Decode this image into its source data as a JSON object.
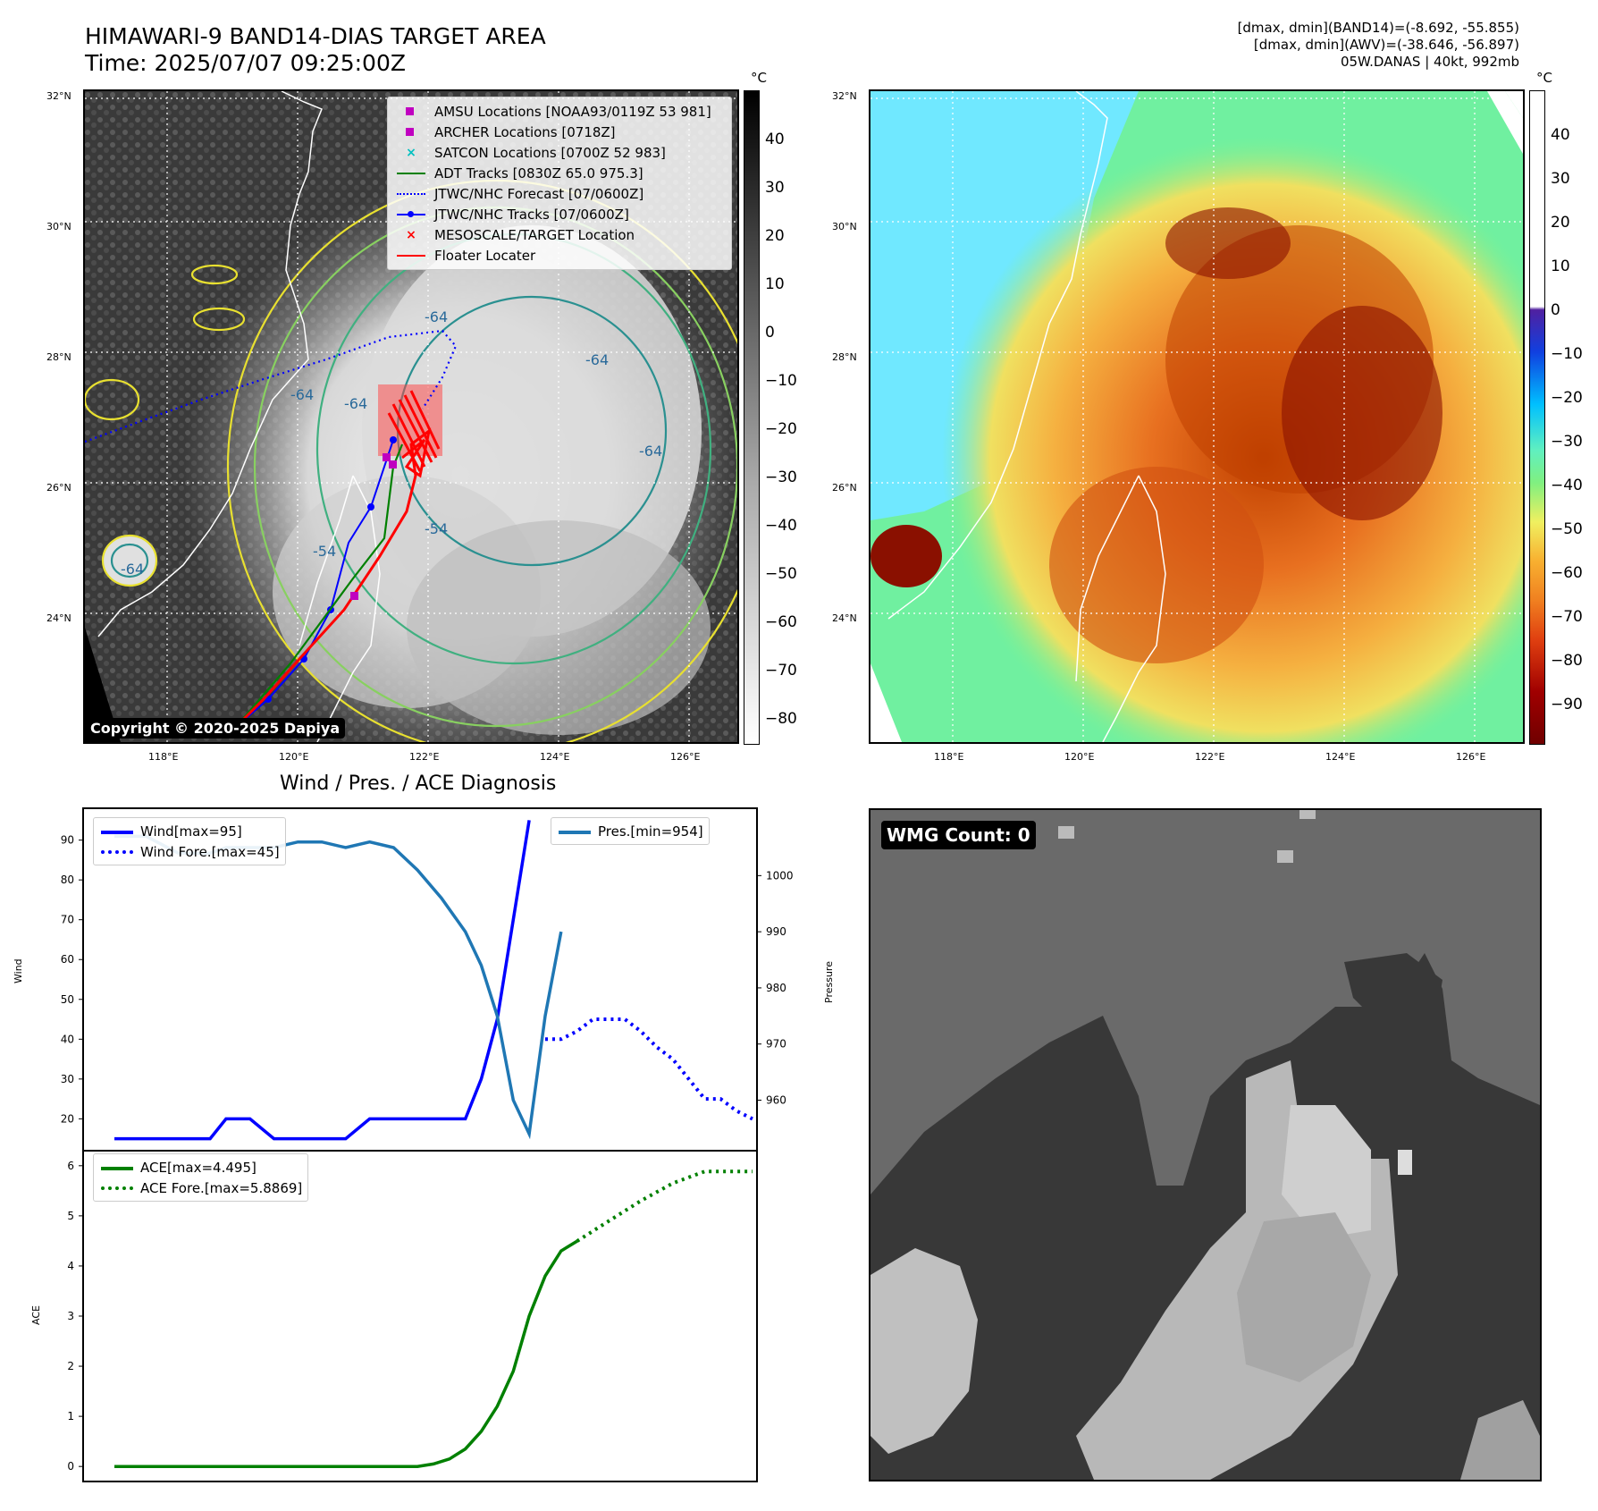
{
  "header": {
    "title_line1": "HIMAWARI-9 BAND14-DIAS TARGET AREA",
    "title_line2": "Time: 2025/07/07 09:25:00Z",
    "info_line1": "[dmax, dmin](BAND14)=(-8.692, -55.855)",
    "info_line2": "[dmax, dmin](AWV)=(-38.646, -56.897)",
    "info_line3": "05W.DANAS | 40kt, 992mb"
  },
  "map": {
    "lat_ticks": [
      "32°N",
      "30°N",
      "28°N",
      "26°N",
      "24°N"
    ],
    "lon_ticks": [
      "118°E",
      "120°E",
      "122°E",
      "124°E",
      "126°E"
    ],
    "copyright": "Copyright © 2020-2025 Dapiya",
    "contour_labels": [
      "-64",
      "-64",
      "-64",
      "-64",
      "-54",
      "-54",
      "-64",
      "-64"
    ],
    "legend": [
      {
        "label": "AMSU Locations [NOAA93/0119Z 53 981]",
        "color": "#c000c0",
        "symbol": "square"
      },
      {
        "label": "ARCHER Locations [0718Z]",
        "color": "#c000c0",
        "symbol": "square"
      },
      {
        "label": "SATCON Locations [0700Z 52 983]",
        "color": "#00c0c0",
        "symbol": "x"
      },
      {
        "label": "ADT Tracks [0830Z 65.0 975.3]",
        "color": "#008000",
        "symbol": "line"
      },
      {
        "label": "JTWC/NHC Forecast [07/0600Z]",
        "color": "#0000ff",
        "symbol": "dotted"
      },
      {
        "label": "JTWC/NHC Tracks [07/0600Z]",
        "color": "#0000ff",
        "symbol": "line-dot"
      },
      {
        "label": "MESOSCALE/TARGET Location",
        "color": "#ff0000",
        "symbol": "x"
      },
      {
        "label": "Floater Locater",
        "color": "#ff0000",
        "symbol": "line"
      }
    ]
  },
  "colorbar_gray": {
    "unit": "°C",
    "ticks": [
      "40",
      "30",
      "20",
      "10",
      "0",
      "−10",
      "−20",
      "−30",
      "−40",
      "−50",
      "−60",
      "−70",
      "−80"
    ]
  },
  "colorbar_color": {
    "unit": "°C",
    "ticks": [
      "40",
      "30",
      "20",
      "10",
      "0",
      "−10",
      "−20",
      "−30",
      "−40",
      "−50",
      "−60",
      "−70",
      "−80",
      "−90"
    ]
  },
  "diag": {
    "title": "Wind / Pres. / ACE Diagnosis",
    "wind_ylabel": "Wind",
    "pres_ylabel": "Pressure",
    "ace_ylabel": "ACE",
    "wind_ticks": [
      "90",
      "80",
      "70",
      "60",
      "50",
      "40",
      "30",
      "20"
    ],
    "pres_ticks": [
      "1000",
      "990",
      "980",
      "970",
      "960"
    ],
    "ace_ticks": [
      "6",
      "5",
      "4",
      "3",
      "2",
      "1",
      "0"
    ],
    "legend_wind": "Wind[max=95]",
    "legend_wind_fore": "Wind Fore.[max=45]",
    "legend_pres": "Pres.[min=954]",
    "legend_ace": "ACE[max=4.495]",
    "legend_ace_fore": "ACE Fore.[max=5.8869]"
  },
  "wmg": {
    "label": "WMG Count: 0"
  },
  "colors": {
    "wind": "#0000ff",
    "pressure": "#1f77b4",
    "ace": "#008000"
  },
  "chart_data": [
    {
      "type": "line",
      "title": "Wind / Pres. / ACE Diagnosis",
      "ylabel": "Wind",
      "ylim": [
        12,
        98
      ],
      "series": [
        {
          "name": "Wind[max=95]",
          "x": [
            0,
            4,
            8,
            10,
            12,
            14,
            17,
            20,
            23,
            26,
            29,
            32,
            35,
            38,
            41,
            44,
            46,
            48,
            50,
            52
          ],
          "values": [
            15,
            15,
            15,
            15,
            15,
            20,
            20,
            15,
            15,
            15,
            15,
            20,
            20,
            20,
            20,
            20,
            30,
            45,
            70,
            95
          ]
        },
        {
          "name": "Wind Fore.[max=45]",
          "x": [
            54,
            56,
            58,
            60,
            62,
            64,
            66,
            68,
            70,
            72,
            74,
            76,
            78,
            80
          ],
          "values": [
            40,
            40,
            42,
            45,
            45,
            45,
            42,
            38,
            35,
            30,
            25,
            25,
            22,
            20
          ]
        }
      ]
    },
    {
      "type": "line",
      "ylabel": "Pressure",
      "ylim": [
        951,
        1012
      ],
      "series": [
        {
          "name": "Pres.[min=954]",
          "x": [
            0,
            4,
            8,
            10,
            12,
            14,
            17,
            20,
            23,
            26,
            29,
            32,
            35,
            38,
            41,
            44,
            46,
            48,
            50,
            52,
            54,
            56
          ],
          "values": [
            1007,
            1007,
            1004,
            1004,
            1004,
            1005,
            1005,
            1005,
            1006,
            1006,
            1005,
            1006,
            1005,
            1001,
            996,
            990,
            984,
            975,
            960,
            954,
            975,
            990
          ]
        }
      ]
    },
    {
      "type": "line",
      "ylabel": "ACE",
      "ylim": [
        -0.3,
        6.3
      ],
      "series": [
        {
          "name": "ACE[max=4.495]",
          "x": [
            0,
            10,
            20,
            30,
            38,
            40,
            42,
            44,
            46,
            48,
            50,
            52,
            54,
            56,
            58
          ],
          "values": [
            0,
            0,
            0,
            0,
            0,
            0.05,
            0.15,
            0.35,
            0.7,
            1.2,
            1.9,
            3,
            3.8,
            4.3,
            4.495
          ]
        },
        {
          "name": "ACE Fore.[max=5.8869]",
          "x": [
            58,
            62,
            66,
            70,
            74,
            78,
            80
          ],
          "values": [
            4.495,
            4.9,
            5.3,
            5.65,
            5.8869,
            5.8869,
            5.8869
          ]
        }
      ]
    }
  ]
}
